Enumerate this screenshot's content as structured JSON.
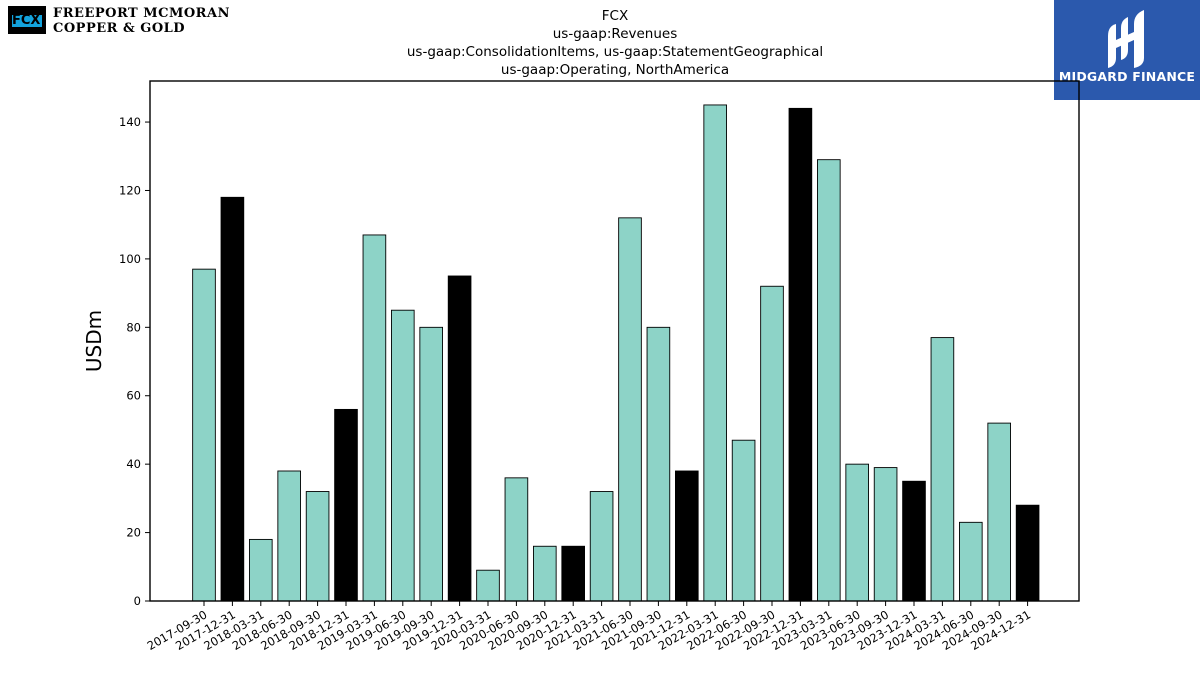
{
  "header": {
    "company_logo_line1": "FREEPORT MCMORAN",
    "company_logo_line2": "COPPER & GOLD",
    "company_logo_mark": "FCX",
    "brand_name": "MIDGARD FINANCE"
  },
  "chart_data": {
    "type": "bar",
    "title": "FCX",
    "subtitle_lines": [
      "us-gaap:Revenues",
      "us-gaap:ConsolidationItems, us-gaap:StatementGeographical",
      "us-gaap:Operating, NorthAmerica"
    ],
    "xlabel": "",
    "ylabel": "USDm",
    "ylim": [
      0,
      152
    ],
    "yticks": [
      0,
      20,
      40,
      60,
      80,
      100,
      120,
      140
    ],
    "grid": false,
    "colors": {
      "quarter": "#8dd3c7",
      "year_end": "#000000",
      "edge": "#000000"
    },
    "categories": [
      "2017-09-30",
      "2017-12-31",
      "2018-03-31",
      "2018-06-30",
      "2018-09-30",
      "2018-12-31",
      "2019-03-31",
      "2019-06-30",
      "2019-09-30",
      "2019-12-31",
      "2020-03-31",
      "2020-06-30",
      "2020-09-30",
      "2020-12-31",
      "2021-03-31",
      "2021-06-30",
      "2021-09-30",
      "2021-12-31",
      "2022-03-31",
      "2022-06-30",
      "2022-09-30",
      "2022-12-31",
      "2023-03-31",
      "2023-06-30",
      "2023-09-30",
      "2023-12-31",
      "2024-03-31",
      "2024-06-30",
      "2024-09-30",
      "2024-12-31"
    ],
    "values": [
      97,
      118,
      18,
      38,
      32,
      56,
      107,
      85,
      80,
      95,
      9,
      36,
      16,
      16,
      32,
      112,
      80,
      38,
      145,
      47,
      92,
      144,
      129,
      40,
      39,
      35,
      77,
      23,
      52,
      28
    ]
  }
}
